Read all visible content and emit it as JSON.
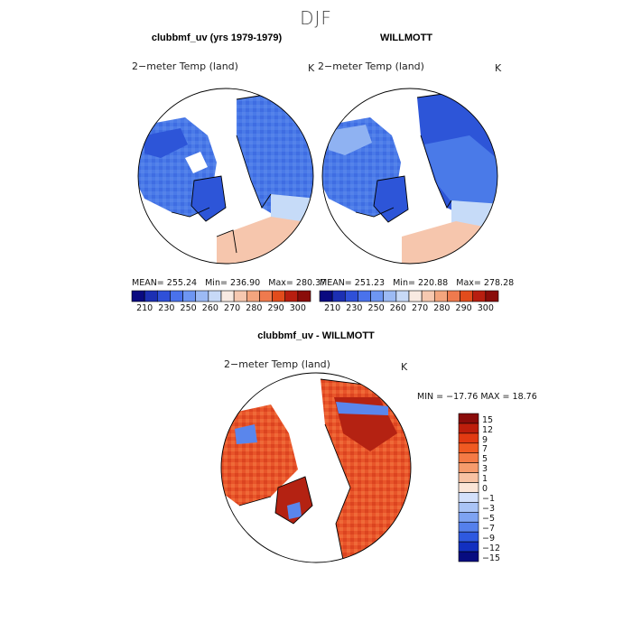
{
  "figure": {
    "season": "DJF",
    "panels": [
      {
        "title": "clubbmf_uv (yrs 1979-1979)",
        "subtitle": "2−meter Temp (land)",
        "units": "K",
        "stats": {
          "mean": "255.24",
          "min": "236.90",
          "max": "280.37"
        }
      },
      {
        "title": "WILLMOTT",
        "subtitle": "2−meter Temp (land)",
        "units": "K",
        "stats": {
          "mean": "251.23",
          "min": "220.88",
          "max": "278.28"
        }
      },
      {
        "title": "clubbmf_uv - WILLMOTT",
        "subtitle": "2−meter Temp (land)",
        "units": "K",
        "stats": {
          "min": "−17.76",
          "max": "18.76"
        }
      }
    ],
    "labels": {
      "mean": "MEAN=",
      "min": "Min=",
      "max": "Max=",
      "diff_min": "MIN =",
      "diff_max": "MAX ="
    }
  },
  "colorbar_abs": {
    "ticks": [
      "210",
      "230",
      "250",
      "260",
      "270",
      "280",
      "290",
      "300"
    ],
    "colors": [
      "#0a0a80",
      "#1c2fb3",
      "#2f50d8",
      "#4a72ec",
      "#6e96f2",
      "#9cbaf4",
      "#c7d9f7",
      "#f8eae2",
      "#f6c8b0",
      "#f3a57e",
      "#ef7a4e",
      "#e24c1c",
      "#b81e10",
      "#8a0c0a"
    ]
  },
  "colorbar_diff": {
    "ticks": [
      "15",
      "12",
      "9",
      "7",
      "5",
      "3",
      "1",
      "0",
      "−1",
      "−3",
      "−5",
      "−7",
      "−9",
      "−12",
      "−15"
    ],
    "colors": [
      "#8a0c0a",
      "#bd1e0c",
      "#e23a12",
      "#f05a22",
      "#f47a45",
      "#f69b6c",
      "#f8c2a3",
      "#fbe5d7",
      "#d3e0fb",
      "#aac4f6",
      "#7ea3f2",
      "#5580ec",
      "#2e59e0",
      "#1230c0",
      "#070c80"
    ]
  },
  "map_colors": {
    "ocean": "#ffffff",
    "abs_blue_dark": "#2d55d8",
    "abs_blue_mid": "#4a7ae8",
    "abs_blue_light": "#8fb2f2",
    "abs_pale": "#c6dbf8",
    "abs_warm": "#f6c6ad",
    "diff_red": "#e8552a",
    "diff_orange": "#f07a45",
    "diff_dark": "#b42212",
    "diff_blue": "#5a86ec"
  }
}
